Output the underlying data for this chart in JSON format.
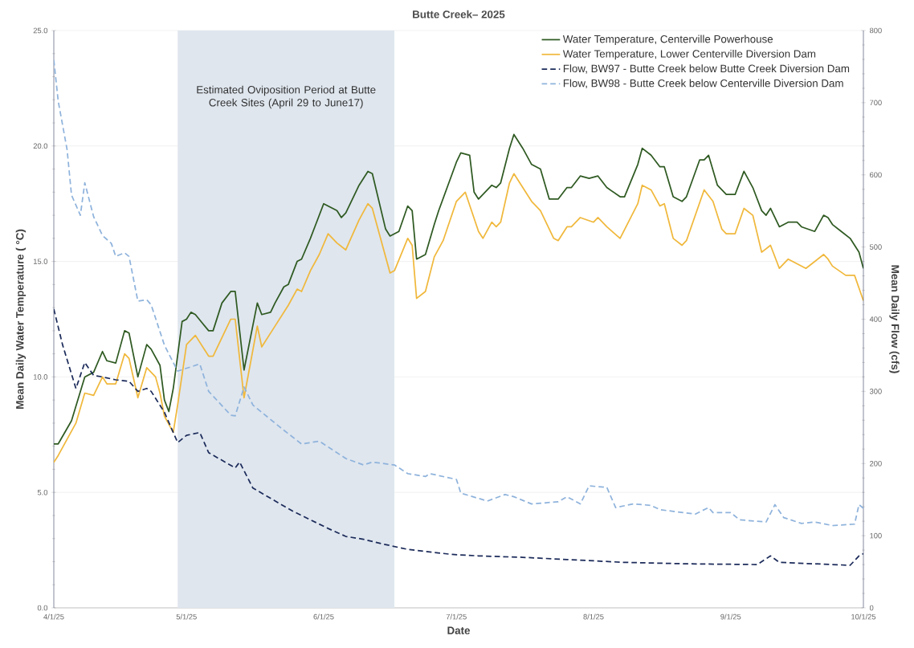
{
  "chart_data": {
    "type": "line",
    "title": "Butte Creek– 2025",
    "xlabel": "Date",
    "ylabel": "Mean Daily Water Temperature ( °C)",
    "y2label": "Mean Daily Flow (cfs)",
    "xlim": [
      "2025-04-01",
      "2025-10-01"
    ],
    "xticks": [
      {
        "value": "2025-04-01",
        "label": "4/1/25"
      },
      {
        "value": "2025-05-01",
        "label": "5/1/25"
      },
      {
        "value": "2025-06-01",
        "label": "6/1/25"
      },
      {
        "value": "2025-07-01",
        "label": "7/1/25"
      },
      {
        "value": "2025-08-01",
        "label": "8/1/25"
      },
      {
        "value": "2025-09-01",
        "label": "9/1/25"
      },
      {
        "value": "2025-10-01",
        "label": "10/1/25"
      }
    ],
    "ylim": [
      0,
      25
    ],
    "yticks": [
      {
        "value": 0,
        "label": "0.0"
      },
      {
        "value": 5,
        "label": "5.0"
      },
      {
        "value": 10,
        "label": "10.0"
      },
      {
        "value": 15,
        "label": "15.0"
      },
      {
        "value": 20,
        "label": "20.0"
      },
      {
        "value": 25,
        "label": "25.0"
      }
    ],
    "y2lim": [
      0,
      800
    ],
    "y2ticks": [
      0,
      100,
      200,
      300,
      400,
      500,
      600,
      700,
      800
    ],
    "grid": "y",
    "legend": "top right",
    "marker": "none",
    "bands": [
      {
        "axis": "x",
        "from": "2025-04-29",
        "to": "2025-06-17",
        "label": "Estimated Oviposition Period at Butte Creek Sites (April 29 to June17)",
        "color": "#dfe6ee"
      }
    ],
    "series": [
      {
        "name": "Water Temperature, Centerville Powerhouse",
        "color": "#2f5a22",
        "line_style": "solid",
        "x": [
          "2025-04-01",
          "2025-04-02",
          "2025-04-05",
          "2025-04-08",
          "2025-04-10",
          "2025-04-12",
          "2025-04-13",
          "2025-04-15",
          "2025-04-17",
          "2025-04-18",
          "2025-04-20",
          "2025-04-22",
          "2025-04-23",
          "2025-04-25",
          "2025-04-26",
          "2025-04-27",
          "2025-04-28",
          "2025-04-30",
          "2025-05-01",
          "2025-05-02",
          "2025-05-03",
          "2025-05-06",
          "2025-05-07",
          "2025-05-09",
          "2025-05-11",
          "2025-05-12",
          "2025-05-14",
          "2025-05-17",
          "2025-05-18",
          "2025-05-20",
          "2025-05-21",
          "2025-05-23",
          "2025-05-24",
          "2025-05-26",
          "2025-05-27",
          "2025-05-29",
          "2025-05-30",
          "2025-06-01",
          "2025-06-04",
          "2025-06-05",
          "2025-06-06",
          "2025-06-09",
          "2025-06-11",
          "2025-06-12",
          "2025-06-15",
          "2025-06-16",
          "2025-06-18",
          "2025-06-20",
          "2025-06-21",
          "2025-06-22",
          "2025-06-24",
          "2025-06-26",
          "2025-06-27",
          "2025-07-01",
          "2025-07-02",
          "2025-07-04",
          "2025-07-05",
          "2025-07-06",
          "2025-07-09",
          "2025-07-10",
          "2025-07-11",
          "2025-07-13",
          "2025-07-14",
          "2025-07-16",
          "2025-07-18",
          "2025-07-20",
          "2025-07-22",
          "2025-07-24",
          "2025-07-26",
          "2025-07-27",
          "2025-07-29",
          "2025-07-31",
          "2025-08-02",
          "2025-08-04",
          "2025-08-07",
          "2025-08-08",
          "2025-08-11",
          "2025-08-12",
          "2025-08-14",
          "2025-08-16",
          "2025-08-17",
          "2025-08-19",
          "2025-08-21",
          "2025-08-22",
          "2025-08-25",
          "2025-08-26",
          "2025-08-27",
          "2025-08-29",
          "2025-08-31",
          "2025-09-02",
          "2025-09-04",
          "2025-09-06",
          "2025-09-08",
          "2025-09-09",
          "2025-09-10",
          "2025-09-12",
          "2025-09-14",
          "2025-09-16",
          "2025-09-17",
          "2025-09-20",
          "2025-09-22",
          "2025-09-23",
          "2025-09-24",
          "2025-09-26",
          "2025-09-28",
          "2025-09-30",
          "2025-10-01"
        ],
        "values": [
          7.1,
          7.1,
          8.1,
          10.0,
          10.2,
          11.1,
          10.7,
          10.6,
          12.0,
          11.9,
          10.0,
          11.4,
          11.2,
          10.5,
          9.0,
          8.5,
          9.5,
          12.4,
          12.5,
          12.8,
          12.7,
          12.0,
          12.0,
          13.2,
          13.7,
          13.7,
          10.3,
          13.2,
          12.7,
          12.8,
          13.2,
          13.9,
          14.0,
          15.0,
          15.1,
          16.0,
          16.5,
          17.5,
          17.2,
          16.9,
          17.1,
          18.3,
          18.9,
          18.8,
          16.4,
          16.1,
          16.3,
          17.4,
          17.2,
          15.1,
          15.3,
          16.6,
          17.2,
          19.3,
          19.7,
          19.6,
          18.0,
          17.7,
          18.3,
          18.2,
          18.4,
          19.9,
          20.5,
          19.9,
          19.2,
          19.0,
          17.7,
          17.7,
          18.2,
          18.2,
          18.7,
          18.6,
          18.7,
          18.2,
          17.8,
          17.8,
          19.2,
          19.9,
          19.6,
          19.1,
          19.1,
          17.8,
          17.6,
          17.8,
          19.4,
          19.4,
          19.6,
          18.3,
          17.9,
          17.9,
          18.9,
          18.2,
          17.2,
          17.0,
          17.3,
          16.5,
          16.7,
          16.7,
          16.5,
          16.3,
          17.0,
          16.9,
          16.6,
          16.3,
          16.0,
          15.4,
          14.7
        ]
      },
      {
        "name": "Water Temperature, Lower Centerville Diversion Dam",
        "color": "#f0b83c",
        "line_style": "solid",
        "x": [
          "2025-04-01",
          "2025-04-02",
          "2025-04-06",
          "2025-04-08",
          "2025-04-10",
          "2025-04-12",
          "2025-04-13",
          "2025-04-15",
          "2025-04-17",
          "2025-04-18",
          "2025-04-20",
          "2025-04-22",
          "2025-04-24",
          "2025-04-25",
          "2025-04-26",
          "2025-04-28",
          "2025-04-29",
          "2025-05-01",
          "2025-05-03",
          "2025-05-06",
          "2025-05-07",
          "2025-05-11",
          "2025-05-12",
          "2025-05-14",
          "2025-05-17",
          "2025-05-18",
          "2025-05-21",
          "2025-05-24",
          "2025-05-26",
          "2025-05-27",
          "2025-05-29",
          "2025-05-31",
          "2025-06-02",
          "2025-06-04",
          "2025-06-06",
          "2025-06-09",
          "2025-06-11",
          "2025-06-12",
          "2025-06-16",
          "2025-06-17",
          "2025-06-20",
          "2025-06-21",
          "2025-06-22",
          "2025-06-24",
          "2025-06-26",
          "2025-06-28",
          "2025-07-01",
          "2025-07-03",
          "2025-07-06",
          "2025-07-07",
          "2025-07-09",
          "2025-07-10",
          "2025-07-11",
          "2025-07-13",
          "2025-07-14",
          "2025-07-16",
          "2025-07-18",
          "2025-07-20",
          "2025-07-23",
          "2025-07-24",
          "2025-07-26",
          "2025-07-27",
          "2025-07-29",
          "2025-08-01",
          "2025-08-02",
          "2025-08-04",
          "2025-08-07",
          "2025-08-11",
          "2025-08-12",
          "2025-08-14",
          "2025-08-16",
          "2025-08-17",
          "2025-08-19",
          "2025-08-21",
          "2025-08-22",
          "2025-08-26",
          "2025-08-28",
          "2025-08-30",
          "2025-08-31",
          "2025-09-02",
          "2025-09-04",
          "2025-09-06",
          "2025-09-08",
          "2025-09-10",
          "2025-09-12",
          "2025-09-14",
          "2025-09-18",
          "2025-09-22",
          "2025-09-23",
          "2025-09-24",
          "2025-09-27",
          "2025-09-29",
          "2025-10-01"
        ],
        "values": [
          6.3,
          6.6,
          8.0,
          9.3,
          9.2,
          10.0,
          9.7,
          9.7,
          11.0,
          10.8,
          9.1,
          10.4,
          10.0,
          9.3,
          8.3,
          7.6,
          8.8,
          11.4,
          11.8,
          10.9,
          10.9,
          12.5,
          12.5,
          9.1,
          12.2,
          11.3,
          12.2,
          13.1,
          13.8,
          13.7,
          14.6,
          15.3,
          16.2,
          15.8,
          15.5,
          16.8,
          17.5,
          17.3,
          14.5,
          14.6,
          16.0,
          15.7,
          13.4,
          13.7,
          15.2,
          15.9,
          17.6,
          18.0,
          16.3,
          16.0,
          16.7,
          16.5,
          16.7,
          18.4,
          18.8,
          18.2,
          17.6,
          17.2,
          16.0,
          15.9,
          16.5,
          16.5,
          16.9,
          16.7,
          16.9,
          16.5,
          16.0,
          17.5,
          18.3,
          18.1,
          17.4,
          17.5,
          16.0,
          15.7,
          15.9,
          18.1,
          17.6,
          16.4,
          16.2,
          16.2,
          17.3,
          17.0,
          15.4,
          15.7,
          14.7,
          15.1,
          14.7,
          15.3,
          15.1,
          14.8,
          14.4,
          14.4,
          13.3
        ]
      },
      {
        "name": "Flow, BW97 - Butte Creek below Butte Creek Diversion Dam",
        "color": "#1c2b5a",
        "line_style": "dashed",
        "axis": "y2",
        "x": [
          "2025-04-01",
          "2025-04-03",
          "2025-04-06",
          "2025-04-08",
          "2025-04-10",
          "2025-04-12",
          "2025-04-15",
          "2025-04-18",
          "2025-04-20",
          "2025-04-22",
          "2025-04-23",
          "2025-04-26",
          "2025-04-28",
          "2025-04-29",
          "2025-05-01",
          "2025-05-04",
          "2025-05-06",
          "2025-05-12",
          "2025-05-13",
          "2025-05-16",
          "2025-05-25",
          "2025-06-02",
          "2025-06-06",
          "2025-06-10",
          "2025-06-14",
          "2025-06-20",
          "2025-06-30",
          "2025-07-06",
          "2025-07-16",
          "2025-07-26",
          "2025-08-08",
          "2025-08-22",
          "2025-09-07",
          "2025-09-10",
          "2025-09-12",
          "2025-09-28",
          "2025-09-30",
          "2025-10-01"
        ],
        "values": [
          414,
          364,
          304,
          340,
          322,
          320,
          316,
          314,
          300,
          304,
          300,
          271,
          243,
          229,
          239,
          243,
          215,
          194,
          202,
          166,
          134,
          110,
          99,
          95,
          89,
          81,
          74,
          72,
          70,
          67,
          63,
          61,
          60,
          72,
          63,
          59,
          72,
          75
        ]
      },
      {
        "name": "Flow, BW98 - Butte Creek below Centerville Diversion Dam",
        "color": "#8fb3dc",
        "line_style": "dashed",
        "axis": "y2",
        "x": [
          "2025-04-01",
          "2025-04-02",
          "2025-04-04",
          "2025-04-05",
          "2025-04-07",
          "2025-04-08",
          "2025-04-10",
          "2025-04-12",
          "2025-04-14",
          "2025-04-15",
          "2025-04-17",
          "2025-04-18",
          "2025-04-20",
          "2025-04-22",
          "2025-04-23",
          "2025-04-26",
          "2025-04-29",
          "2025-04-30",
          "2025-05-02",
          "2025-05-04",
          "2025-05-06",
          "2025-05-11",
          "2025-05-12",
          "2025-05-14",
          "2025-05-16",
          "2025-05-22",
          "2025-05-27",
          "2025-05-31",
          "2025-06-06",
          "2025-06-10",
          "2025-06-12",
          "2025-06-17",
          "2025-06-20",
          "2025-06-24",
          "2025-06-25",
          "2025-07-01",
          "2025-07-02",
          "2025-07-08",
          "2025-07-12",
          "2025-07-14",
          "2025-07-18",
          "2025-07-24",
          "2025-07-26",
          "2025-07-29",
          "2025-07-31",
          "2025-08-04",
          "2025-08-06",
          "2025-08-10",
          "2025-08-14",
          "2025-08-16",
          "2025-08-24",
          "2025-08-27",
          "2025-08-28",
          "2025-09-01",
          "2025-09-03",
          "2025-09-09",
          "2025-09-11",
          "2025-09-13",
          "2025-09-17",
          "2025-09-20",
          "2025-09-24",
          "2025-09-29",
          "2025-09-30",
          "2025-10-01"
        ],
        "values": [
          759,
          702,
          635,
          572,
          544,
          589,
          542,
          516,
          505,
          487,
          492,
          487,
          425,
          427,
          420,
          364,
          328,
          330,
          334,
          338,
          300,
          267,
          266,
          306,
          281,
          251,
          227,
          231,
          207,
          198,
          202,
          198,
          186,
          182,
          186,
          178,
          159,
          148,
          157,
          154,
          144,
          147,
          154,
          144,
          169,
          167,
          139,
          144,
          142,
          136,
          130,
          139,
          132,
          132,
          122,
          119,
          143,
          125,
          117,
          119,
          114,
          116,
          143,
          138
        ]
      }
    ]
  }
}
